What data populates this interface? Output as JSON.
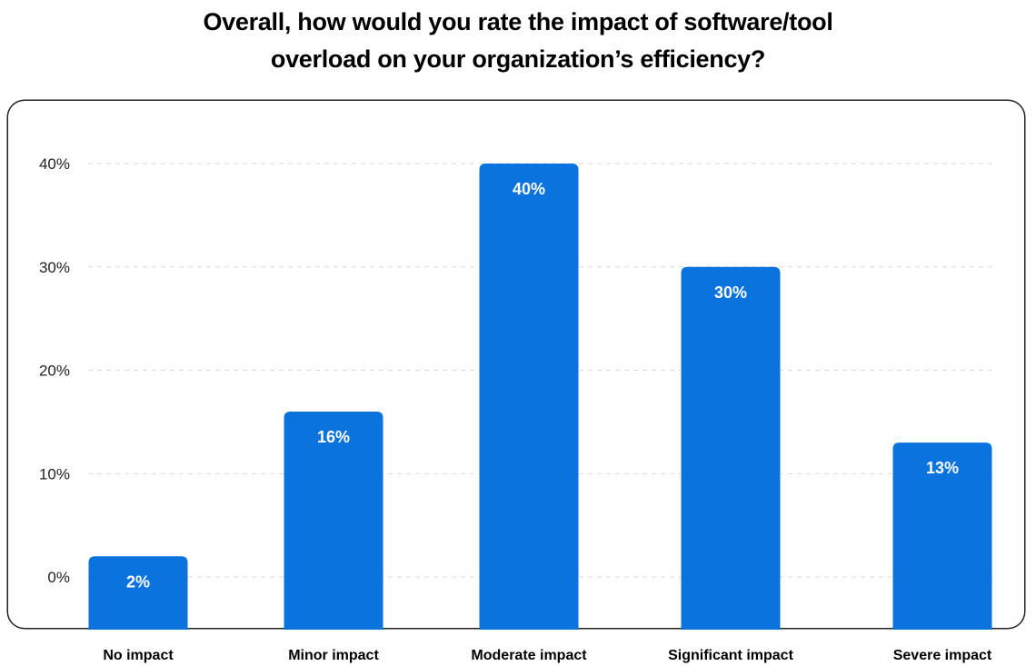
{
  "chart_data": {
    "type": "bar",
    "title": "Overall, how would you rate the impact of software/tool overload on your organization’s efficiency?",
    "title_lines": [
      "Overall, how would you rate the impact of software/tool",
      "overload on your organization’s efficiency?"
    ],
    "categories": [
      "No impact",
      "Minor impact",
      "Moderate impact",
      "Significant impact",
      "Severe impact"
    ],
    "values": [
      2,
      16,
      40,
      30,
      13
    ],
    "value_labels": [
      "2%",
      "16%",
      "40%",
      "30%",
      "13%"
    ],
    "y_ticks": [
      0,
      10,
      20,
      30,
      40
    ],
    "y_tick_labels": [
      "0%",
      "10%",
      "20%",
      "30%",
      "40%"
    ],
    "ylim": [
      0,
      40
    ],
    "xlabel": "",
    "ylabel": "",
    "grid": true,
    "grid_style": "dashed",
    "bar_color": "#0A73DE",
    "value_label_color": "#FFFFFF"
  }
}
